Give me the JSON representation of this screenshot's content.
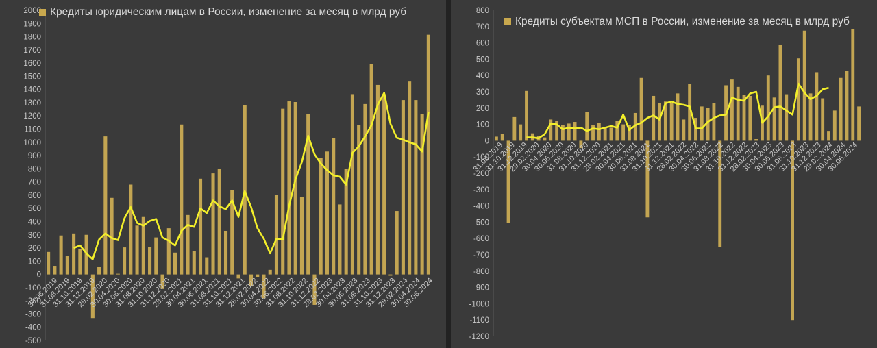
{
  "chart_data": [
    {
      "type": "bar",
      "legend": "Кредиты юридическим лицам в России, изменение за месяц в млрд руб",
      "colors": {
        "bar": "#c3a552",
        "line": "#f2ee2a",
        "text": "#c8c8c8",
        "grid": "#4a4a4a"
      },
      "y_ticks": [
        "2000",
        "1900",
        "1800",
        "1700",
        "1600",
        "1500",
        "1400",
        "1300",
        "1200",
        "1100",
        "1000",
        "900",
        "800",
        "700",
        "600",
        "500",
        "400",
        "300",
        "200",
        "100",
        "0",
        "-100",
        "-200",
        "-300",
        "-400",
        "-500"
      ],
      "ylim": [
        -500,
        2000
      ],
      "x_labels": [
        "30.06.2019",
        "31.08.2019",
        "31.10.2019",
        "31.12.2019",
        "29.02.2020",
        "30.04.2020",
        "30.06.2020",
        "31.08.2020",
        "31.10.2020",
        "31.12.2020",
        "28.02.2021",
        "30.04.2021",
        "30.06.2021",
        "31.08.2021",
        "31.10.2021",
        "31.12.2021",
        "28.02.2022",
        "30.04.2022",
        "30.06.2022",
        "31.08.2022",
        "31.10.2022",
        "31.12.2022",
        "28.02.2023",
        "30.04.2023",
        "30.06.2023",
        "31.08.2023",
        "31.10.2023",
        "31.12.2023",
        "29.02.2024",
        "30.04.2024",
        "30.06.2024"
      ],
      "values": [
        170,
        60,
        295,
        140,
        310,
        190,
        300,
        -330,
        55,
        1045,
        580,
        5,
        205,
        680,
        370,
        435,
        210,
        280,
        -110,
        350,
        165,
        1135,
        450,
        175,
        725,
        130,
        765,
        800,
        330,
        640,
        -30,
        1280,
        -90,
        -20,
        -180,
        35,
        600,
        1255,
        1310,
        1305,
        585,
        1215,
        -230,
        880,
        930,
        1035,
        530,
        800,
        1365,
        1130,
        1290,
        1595,
        1435,
        1365,
        -10,
        480,
        1320,
        1465,
        1320,
        1215,
        1815
      ],
      "moving_avg": [
        null,
        null,
        200,
        220,
        160,
        115,
        265,
        310,
        275,
        260,
        425,
        510,
        390,
        370,
        405,
        420,
        280,
        255,
        220,
        330,
        375,
        360,
        500,
        465,
        560,
        515,
        495,
        560,
        435,
        630,
        510,
        350,
        270,
        160,
        270,
        265,
        520,
        720,
        850,
        1050,
        910,
        840,
        790,
        750,
        740,
        680,
        920,
        970,
        1045,
        1130,
        1285,
        1375,
        1140,
        1035,
        1020,
        1000,
        985,
        930,
        1230
      ],
      "ma_offset": 2
    },
    {
      "type": "bar",
      "legend": "Кредиты субъектам МСП  в России, изменение за месяц в млрд руб",
      "colors": {
        "bar": "#c3a552",
        "line": "#f2ee2a",
        "text": "#c8c8c8",
        "grid": "#4a4a4a"
      },
      "y_ticks": [
        "800",
        "700",
        "600",
        "500",
        "400",
        "300",
        "200",
        "100",
        "0",
        "-100",
        "-200",
        "-300",
        "-400",
        "-500",
        "-600",
        "-700",
        "-800",
        "-900",
        "-1000",
        "-1100",
        "-1200"
      ],
      "ylim": [
        -1200,
        800
      ],
      "x_labels": [
        "31.08.2019",
        "31.10.2019",
        "31.12.2019",
        "29.02.2020",
        "30.04.2020",
        "30.06.2020",
        "31.08.2020",
        "31.10.2020",
        "31.12.2020",
        "28.02.2021",
        "30.04.2021",
        "30.06.2021",
        "31.08.2021",
        "31.10.2021",
        "31.12.2021",
        "28.02.2022",
        "30.04.2022",
        "30.06.2022",
        "31.08.2022",
        "31.10.2022",
        "31.12.2022",
        "28.02.2023",
        "30.04.2023",
        "30.06.2023",
        "31.08.2023",
        "31.10.2023",
        "31.12.2023",
        "29.02.2024",
        "30.04.2024",
        "30.06.2024"
      ],
      "values": [
        25,
        40,
        -505,
        145,
        100,
        305,
        45,
        30,
        20,
        130,
        120,
        95,
        105,
        115,
        -45,
        175,
        95,
        110,
        80,
        80,
        120,
        100,
        95,
        170,
        385,
        -470,
        275,
        230,
        240,
        230,
        290,
        130,
        350,
        140,
        210,
        200,
        230,
        -650,
        340,
        375,
        330,
        280,
        275,
        10,
        215,
        400,
        265,
        590,
        285,
        -1100,
        505,
        675,
        290,
        420,
        260,
        60,
        185,
        385,
        430,
        685,
        210
      ],
      "moving_avg": [
        20,
        20,
        15,
        40,
        105,
        100,
        70,
        80,
        75,
        80,
        60,
        75,
        70,
        80,
        90,
        80,
        160,
        65,
        95,
        110,
        140,
        155,
        130,
        230,
        240,
        225,
        220,
        210,
        75,
        75,
        115,
        140,
        155,
        160,
        265,
        250,
        245,
        290,
        300,
        110,
        150,
        205,
        210,
        185,
        160,
        350,
        295,
        255,
        275,
        315,
        325
      ],
      "ma_offset": 5
    }
  ]
}
